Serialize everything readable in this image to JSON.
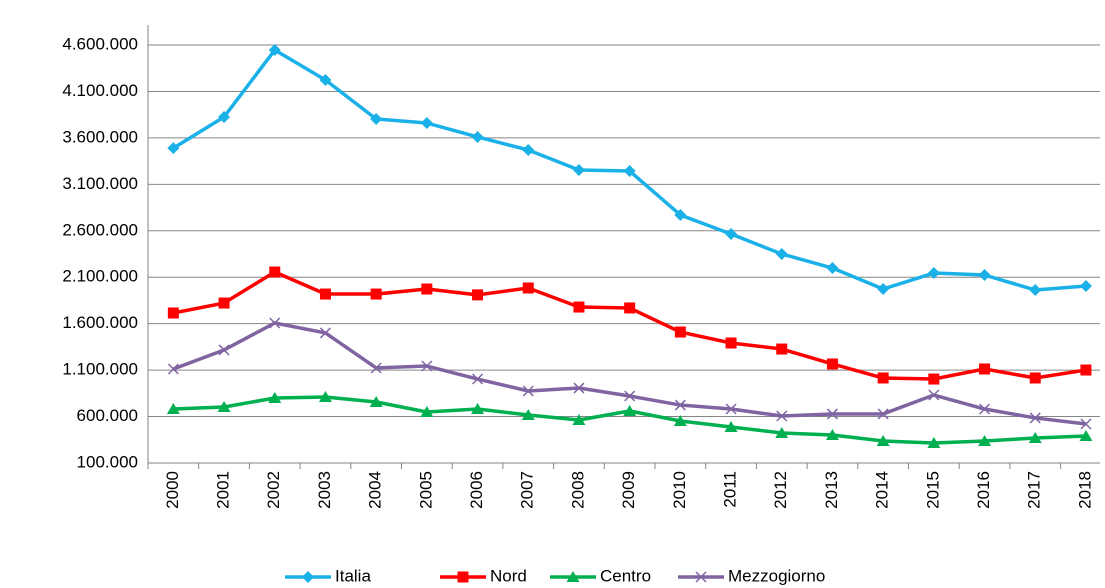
{
  "chart_data": {
    "type": "line",
    "categories": [
      "2000",
      "2001",
      "2002",
      "2003",
      "2004",
      "2005",
      "2006",
      "2007",
      "2008",
      "2009",
      "2010",
      "2011",
      "2012",
      "2013",
      "2014",
      "2015",
      "2016",
      "2017",
      "2018"
    ],
    "series": [
      {
        "name": "Italia",
        "color": "#1ab0e8",
        "marker": "diamond",
        "values": [
          3490000,
          3825000,
          4546000,
          4223000,
          3803000,
          3760000,
          3610000,
          3470000,
          3254000,
          3243000,
          2770000,
          2565000,
          2350000,
          2199000,
          1973000,
          2145000,
          2124000,
          1962000,
          2005000
        ]
      },
      {
        "name": "Nord",
        "color": "#ff0000",
        "marker": "square",
        "values": [
          1715000,
          1822000,
          2156000,
          1919000,
          1919000,
          1973000,
          1910000,
          1984000,
          1779000,
          1769000,
          1510000,
          1392000,
          1327000,
          1166000,
          1015000,
          1004000,
          1112000,
          1015000,
          1101000
        ]
      },
      {
        "name": "Centro",
        "color": "#00b050",
        "marker": "triangle",
        "values": [
          681000,
          703000,
          800000,
          810000,
          757000,
          649000,
          681000,
          617000,
          563000,
          660000,
          552000,
          488000,
          423000,
          401000,
          337000,
          315000,
          337000,
          369000,
          391000
        ]
      },
      {
        "name": "Mezzogiorno",
        "color": "#8064a2",
        "marker": "x",
        "values": [
          1112000,
          1317000,
          1607000,
          1500000,
          1123000,
          1144000,
          1004000,
          875000,
          907000,
          821000,
          724000,
          681000,
          606000,
          628000,
          628000,
          832000,
          681000,
          585000,
          520000
        ]
      }
    ],
    "ylim": [
      100000,
      4600000
    ],
    "yticks": [
      {
        "value": 100000,
        "label": "100.000"
      },
      {
        "value": 600000,
        "label": "600.000"
      },
      {
        "value": 1100000,
        "label": "1.100.000"
      },
      {
        "value": 1600000,
        "label": "1.600.000"
      },
      {
        "value": 2100000,
        "label": "2.100.000"
      },
      {
        "value": 2600000,
        "label": "2.600.000"
      },
      {
        "value": 3100000,
        "label": "3.100.000"
      },
      {
        "value": 3600000,
        "label": "3.600.000"
      },
      {
        "value": 4100000,
        "label": "4.100.000"
      },
      {
        "value": 4600000,
        "label": "4.600.000"
      }
    ],
    "grid": true,
    "legend": "bottom"
  }
}
